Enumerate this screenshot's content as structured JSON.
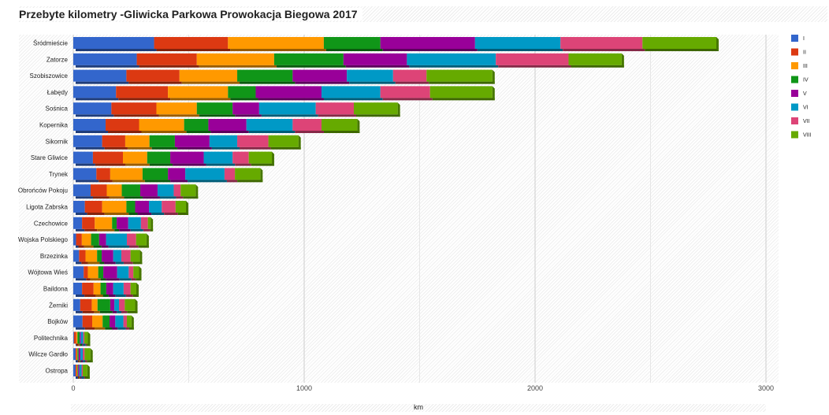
{
  "title": "Przebyte kilometry -Gliwicka Parkowa Prowokacja Biegowa 2017",
  "chart_data": {
    "type": "bar",
    "orientation": "horizontal",
    "stacked": true,
    "title": "Przebyte kilometry -Gliwicka Parkowa Prowokacja Biegowa 2017",
    "xlabel": "km",
    "ylabel": "",
    "xlim": [
      0,
      3000
    ],
    "xticks": [
      "0",
      "1000",
      "2000",
      "3000"
    ],
    "grid": true,
    "legend_position": "right",
    "categories": [
      "Śródmieście",
      "Zatorze",
      "Szobiszowice",
      "Łabędy",
      "Sośnica",
      "Kopernika",
      "Sikornik",
      "Stare Gliwice",
      "Trynek",
      "Obrońców Pokoju",
      "Ligota Zabrska",
      "Czechowice",
      "Wojska Polskiego",
      "Brzezinka",
      "Wójtowa Wieś",
      "Baildona",
      "Żerniki",
      "Bojków",
      "Politechnika",
      "Wilcze Gardło",
      "Ostropa"
    ],
    "series": [
      {
        "name": "I",
        "color": "#3366cc",
        "values": [
          350,
          275,
          230,
          185,
          165,
          140,
          125,
          85,
          100,
          75,
          50,
          38,
          12,
          25,
          45,
          38,
          30,
          40,
          3,
          10,
          10
        ]
      },
      {
        "name": "II",
        "color": "#dc3912",
        "values": [
          320,
          260,
          230,
          225,
          195,
          145,
          100,
          130,
          60,
          70,
          75,
          55,
          25,
          28,
          18,
          50,
          50,
          42,
          10,
          5,
          5
        ]
      },
      {
        "name": "III",
        "color": "#ff9900",
        "values": [
          415,
          335,
          250,
          260,
          175,
          195,
          105,
          105,
          140,
          65,
          105,
          75,
          40,
          50,
          45,
          30,
          25,
          45,
          5,
          3,
          3
        ]
      },
      {
        "name": "IV",
        "color": "#109618",
        "values": [
          245,
          300,
          240,
          120,
          155,
          105,
          110,
          100,
          110,
          80,
          38,
          20,
          35,
          20,
          22,
          25,
          55,
          30,
          10,
          5,
          3
        ]
      },
      {
        "name": "V",
        "color": "#990099",
        "values": [
          410,
          275,
          235,
          285,
          115,
          165,
          150,
          145,
          75,
          75,
          60,
          50,
          30,
          50,
          60,
          30,
          18,
          25,
          5,
          8,
          5
        ]
      },
      {
        "name": "VI",
        "color": "#0099c6",
        "values": [
          370,
          385,
          200,
          255,
          245,
          200,
          120,
          125,
          170,
          70,
          55,
          55,
          90,
          35,
          50,
          45,
          20,
          35,
          10,
          10,
          10
        ]
      },
      {
        "name": "VII",
        "color": "#dd4477",
        "values": [
          355,
          315,
          145,
          215,
          165,
          125,
          135,
          70,
          45,
          30,
          60,
          30,
          40,
          40,
          20,
          30,
          25,
          15,
          5,
          8,
          5
        ]
      },
      {
        "name": "VIII",
        "color": "#66aa00",
        "values": [
          320,
          230,
          285,
          270,
          190,
          155,
          130,
          100,
          110,
          65,
          45,
          12,
          45,
          40,
          25,
          25,
          45,
          20,
          15,
          25,
          20
        ]
      }
    ]
  }
}
